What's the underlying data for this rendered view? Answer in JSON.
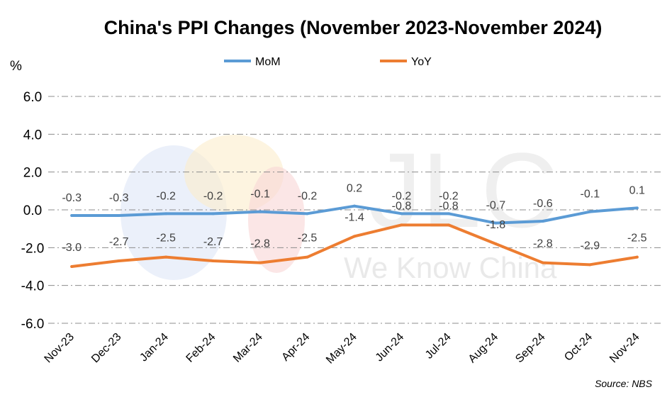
{
  "chart_data": {
    "type": "line",
    "title": "China's PPI Changes (November 2023-November 2024)",
    "ylabel": "%",
    "categories": [
      "Nov-23",
      "Dec-23",
      "Jan-24",
      "Feb-24",
      "Mar-24",
      "Apr-24",
      "May-24",
      "Jun-24",
      "Jul-24",
      "Aug-24",
      "Sep-24",
      "Oct-24",
      "Nov-24"
    ],
    "series": [
      {
        "name": "MoM",
        "color": "#5b9bd5",
        "values": [
          -0.3,
          -0.3,
          -0.2,
          -0.2,
          -0.1,
          -0.2,
          0.2,
          -0.2,
          -0.2,
          -0.7,
          -0.6,
          -0.1,
          0.1
        ]
      },
      {
        "name": "YoY",
        "color": "#ed7d31",
        "values": [
          -3.0,
          -2.7,
          -2.5,
          -2.7,
          -2.8,
          -2.5,
          -1.4,
          -0.8,
          -0.8,
          -1.8,
          -2.8,
          -2.9,
          -2.5
        ]
      }
    ],
    "ylim": [
      -6.0,
      6.0
    ],
    "yticks": [
      -6.0,
      -4.0,
      -2.0,
      0.0,
      2.0,
      4.0,
      6.0
    ],
    "grid": true,
    "legend_position": "top",
    "source": "Source: NBS"
  },
  "watermark": {
    "logo": "JLC",
    "tagline": "We Know China"
  }
}
